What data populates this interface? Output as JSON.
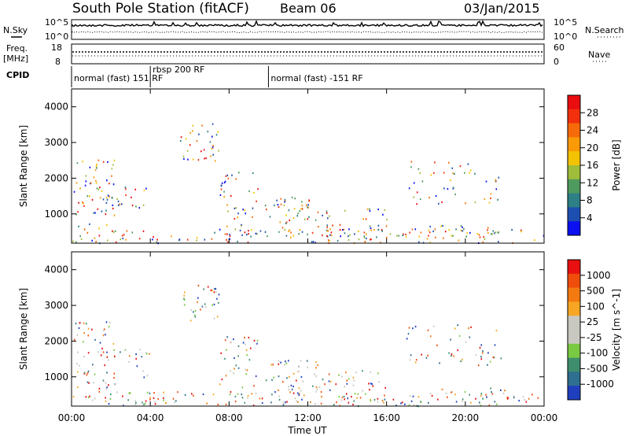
{
  "header": {
    "station": "South Pole Station (fitACF)",
    "beam": "Beam 06",
    "date": "03/Jan/2015"
  },
  "left_labels": {
    "nsky": "N.Sky",
    "freq_line1": "Freq.",
    "freq_line2": "[MHz]",
    "cpid": "CPID"
  },
  "right_labels": {
    "nsearch": "N.Search",
    "nave": "Nave"
  },
  "noise_panel": {
    "left_ticks": [
      "10^5",
      "10^0"
    ],
    "right_ticks": [
      "10^5",
      "10^0"
    ]
  },
  "freq_panel": {
    "left_ticks": [
      "18",
      "8"
    ],
    "right_ticks": [
      "60",
      "0"
    ]
  },
  "cpid_segments": [
    {
      "label": "normal (fast) 151 RF",
      "start_hr": 0.0
    },
    {
      "label": "rbsp 200 RF",
      "start_hr": 4.0
    },
    {
      "label": "normal (fast) -151 RF",
      "start_hr": 10.0
    }
  ],
  "chart_data": [
    {
      "type": "heatmap",
      "parameter": "Power",
      "ylabel": "Slant Range [km]",
      "xlabel": "",
      "xlim_hours": [
        0,
        24
      ],
      "ylim_km": [
        180,
        4500
      ],
      "yticks": [
        "1000",
        "2000",
        "3000",
        "4000"
      ],
      "colorbar": {
        "label": "Power [dB]",
        "tick_labels": [
          "4",
          "8",
          "12",
          "16",
          "20",
          "24",
          "28"
        ],
        "colors": [
          "#0a10f0",
          "#1d4fb0",
          "#2e7f86",
          "#4f9a5f",
          "#9fbd3a",
          "#f3c200",
          "#f99a06",
          "#f66a0a",
          "#f3300d",
          "#e90d0f"
        ]
      }
    },
    {
      "type": "heatmap",
      "parameter": "Velocity",
      "ylabel": "Slant Range [km]",
      "xlabel": "Time UT",
      "xlim_hours": [
        0,
        24
      ],
      "ylim_km": [
        180,
        4500
      ],
      "yticks": [
        "1000",
        "2000",
        "3000",
        "4000"
      ],
      "xticks": [
        "00:00",
        "04:00",
        "08:00",
        "12:00",
        "16:00",
        "20:00",
        "00:00"
      ],
      "colorbar": {
        "label": "Velocity [m s^-1]",
        "tick_labels": [
          "1000",
          "500",
          "100",
          "25",
          "-25",
          "-100",
          "-500",
          "-1000"
        ],
        "colors": [
          "#1f3fbf",
          "#2f6f8f",
          "#3e8e6e",
          "#7ac943",
          "#c8c8c0",
          "#c8c8c0",
          "#f6a623",
          "#f37a10",
          "#f04d0d",
          "#e81010"
        ]
      }
    }
  ]
}
